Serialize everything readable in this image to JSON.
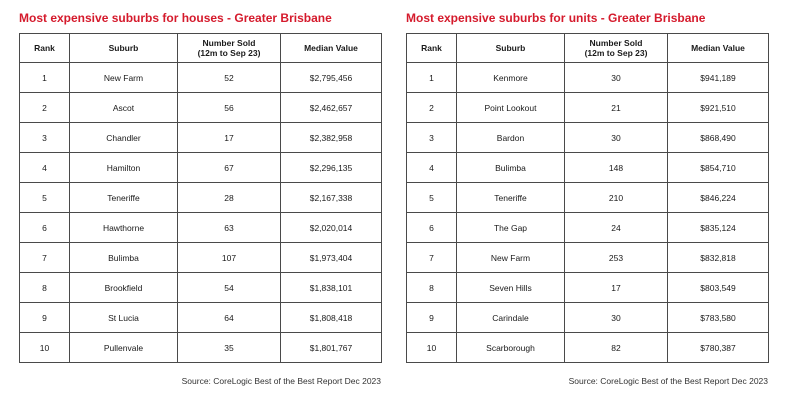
{
  "houses": {
    "title": "Most expensive suburbs for houses - Greater Brisbane",
    "columns": {
      "rank": "Rank",
      "suburb": "Suburb",
      "sold_line1": "Number Sold",
      "sold_line2": "(12m to Sep 23)",
      "median": "Median Value"
    },
    "rows": [
      {
        "rank": "1",
        "suburb": "New Farm",
        "sold": "52",
        "median": "$2,795,456"
      },
      {
        "rank": "2",
        "suburb": "Ascot",
        "sold": "56",
        "median": "$2,462,657"
      },
      {
        "rank": "3",
        "suburb": "Chandler",
        "sold": "17",
        "median": "$2,382,958"
      },
      {
        "rank": "4",
        "suburb": "Hamilton",
        "sold": "67",
        "median": "$2,296,135"
      },
      {
        "rank": "5",
        "suburb": "Teneriffe",
        "sold": "28",
        "median": "$2,167,338"
      },
      {
        "rank": "6",
        "suburb": "Hawthorne",
        "sold": "63",
        "median": "$2,020,014"
      },
      {
        "rank": "7",
        "suburb": "Bulimba",
        "sold": "107",
        "median": "$1,973,404"
      },
      {
        "rank": "8",
        "suburb": "Brookfield",
        "sold": "54",
        "median": "$1,838,101"
      },
      {
        "rank": "9",
        "suburb": "St Lucia",
        "sold": "64",
        "median": "$1,808,418"
      },
      {
        "rank": "10",
        "suburb": "Pullenvale",
        "sold": "35",
        "median": "$1,801,767"
      }
    ],
    "source": "Source: CoreLogic Best of the Best Report Dec 2023"
  },
  "units": {
    "title": "Most expensive suburbs for units - Greater Brisbane",
    "columns": {
      "rank": "Rank",
      "suburb": "Suburb",
      "sold_line1": "Number Sold",
      "sold_line2": "(12m to Sep 23)",
      "median": "Median Value"
    },
    "rows": [
      {
        "rank": "1",
        "suburb": "Kenmore",
        "sold": "30",
        "median": "$941,189"
      },
      {
        "rank": "2",
        "suburb": "Point Lookout",
        "sold": "21",
        "median": "$921,510"
      },
      {
        "rank": "3",
        "suburb": "Bardon",
        "sold": "30",
        "median": "$868,490"
      },
      {
        "rank": "4",
        "suburb": "Bulimba",
        "sold": "148",
        "median": "$854,710"
      },
      {
        "rank": "5",
        "suburb": "Teneriffe",
        "sold": "210",
        "median": "$846,224"
      },
      {
        "rank": "6",
        "suburb": "The Gap",
        "sold": "24",
        "median": "$835,124"
      },
      {
        "rank": "7",
        "suburb": "New Farm",
        "sold": "253",
        "median": "$832,818"
      },
      {
        "rank": "8",
        "suburb": "Seven Hills",
        "sold": "17",
        "median": "$803,549"
      },
      {
        "rank": "9",
        "suburb": "Carindale",
        "sold": "30",
        "median": "$783,580"
      },
      {
        "rank": "10",
        "suburb": "Scarborough",
        "sold": "82",
        "median": "$780,387"
      }
    ],
    "source": "Source: CoreLogic Best of the Best Report Dec 2023"
  },
  "colors": {
    "title": "#d51a2c",
    "border": "#4a4a4a"
  }
}
